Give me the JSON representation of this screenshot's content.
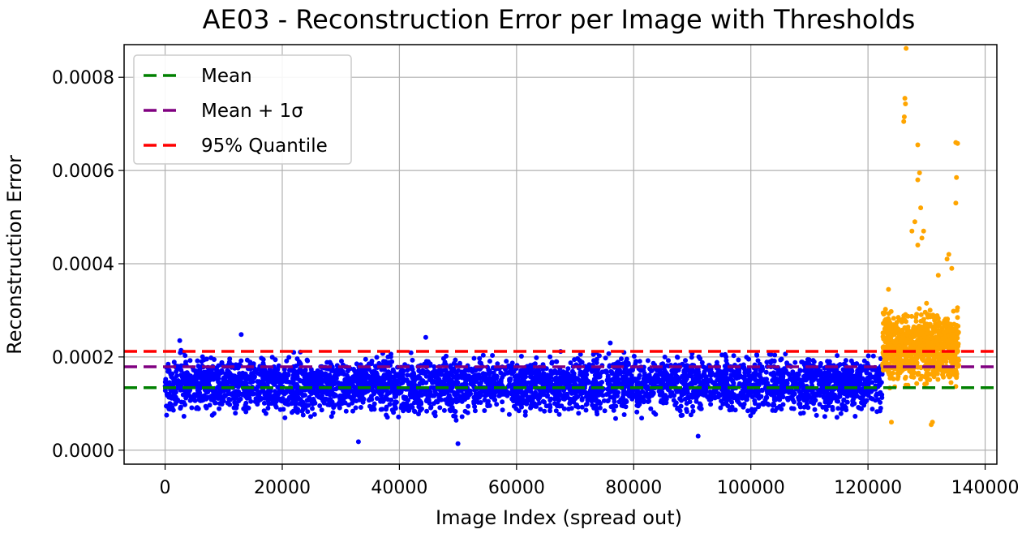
{
  "chart_data": {
    "type": "scatter",
    "title": "AE03 - Reconstruction Error per Image with Thresholds",
    "xlabel": "Image Index (spread out)",
    "ylabel": "Reconstruction Error",
    "xlim": [
      -7000,
      142000
    ],
    "ylim": [
      -3e-05,
      0.00087
    ],
    "xticks": [
      0,
      20000,
      40000,
      60000,
      80000,
      100000,
      120000,
      140000
    ],
    "xtick_labels": [
      "0",
      "20000",
      "40000",
      "60000",
      "80000",
      "100000",
      "120000",
      "140000"
    ],
    "yticks": [
      0.0,
      0.0002,
      0.0004,
      0.0006,
      0.0008
    ],
    "ytick_labels": [
      "0.0000",
      "0.0002",
      "0.0004",
      "0.0006",
      "0.0008"
    ],
    "grid": true,
    "legend_position": "top-left",
    "series": [
      {
        "kind": "points",
        "color": "#0000ff",
        "x_range": [
          0,
          122500
        ],
        "typical_range": [
          6e-05,
          0.00022
        ],
        "sample_points": [
          [
            13000,
            0.000248
          ],
          [
            33000,
            1.8e-05
          ],
          [
            50000,
            1.4e-05
          ],
          [
            44500,
            0.000242
          ],
          [
            2500,
            0.000235
          ],
          [
            76000,
            0.00023
          ],
          [
            91000,
            3e-05
          ]
        ]
      },
      {
        "kind": "points",
        "color": "#ffa500",
        "x_range": [
          122500,
          135500
        ],
        "typical_range": [
          0.00012,
          0.00032
        ],
        "sample_points": [
          [
            126500,
            0.000862
          ],
          [
            126300,
            0.000755
          ],
          [
            126400,
            0.000743
          ],
          [
            126200,
            0.000715
          ],
          [
            126100,
            0.000705
          ],
          [
            128500,
            0.000655
          ],
          [
            135000,
            0.00066
          ],
          [
            135300,
            0.000658
          ],
          [
            128800,
            0.000595
          ],
          [
            128500,
            0.00058
          ],
          [
            135100,
            0.000585
          ],
          [
            135000,
            0.00053
          ],
          [
            129000,
            0.00052
          ],
          [
            128000,
            0.00049
          ],
          [
            129200,
            0.000455
          ],
          [
            129500,
            0.00047
          ],
          [
            127500,
            0.00047
          ],
          [
            128500,
            0.00044
          ],
          [
            133800,
            0.00042
          ],
          [
            133500,
            0.00041
          ],
          [
            134300,
            0.00039
          ],
          [
            132000,
            0.000375
          ],
          [
            123500,
            0.000345
          ],
          [
            130000,
            0.000315
          ],
          [
            130800,
            5.5e-05
          ],
          [
            131000,
            6e-05
          ],
          [
            124000,
            6e-05
          ]
        ]
      }
    ],
    "hlines": [
      {
        "name": "Mean",
        "y": 0.000134,
        "color": "#008000"
      },
      {
        "name": "Mean + 1σ",
        "y": 0.000179,
        "color": "#800080"
      },
      {
        "name": "95% Quantile",
        "y": 0.000212,
        "color": "#ff0000"
      }
    ],
    "legend": [
      {
        "label": "Mean",
        "color": "#008000"
      },
      {
        "label": "Mean + 1σ",
        "color": "#800080"
      },
      {
        "label": "95% Quantile",
        "color": "#ff0000"
      }
    ]
  }
}
